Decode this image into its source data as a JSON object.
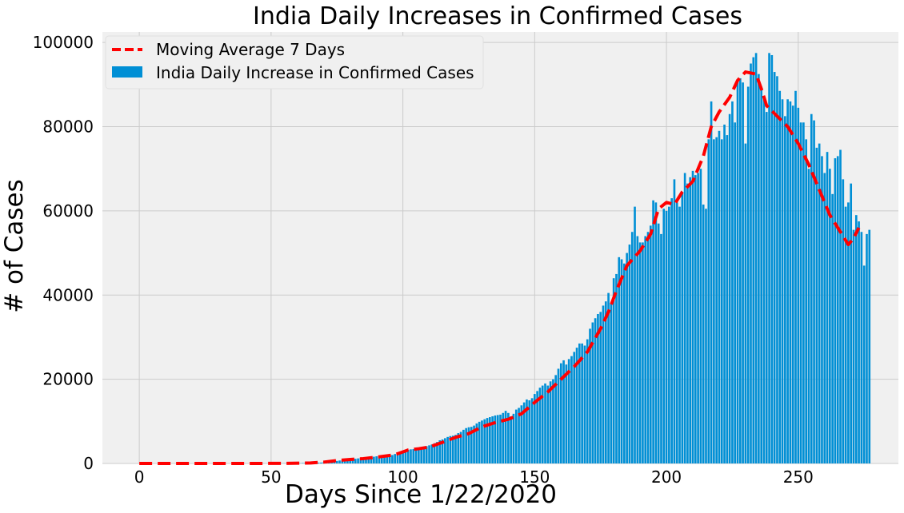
{
  "chart_data": {
    "type": "bar",
    "title": "India Daily Increases in Confirmed Cases",
    "xlabel": "Days Since 1/22/2020",
    "ylabel": "# of Cases",
    "xlim": [
      -14,
      288
    ],
    "ylim": [
      0,
      102500
    ],
    "xticks": [
      0,
      50,
      100,
      150,
      200,
      250
    ],
    "yticks": [
      0,
      20000,
      40000,
      60000,
      80000,
      100000
    ],
    "grid": true,
    "legend_position": "upper-left",
    "colors": {
      "bar": "#008fd5",
      "line": "#ff0000",
      "background": "#f0f0f0",
      "grid": "#cbcbcb",
      "legend_bg": "#f0f0f0",
      "legend_border": "#e0e0e0"
    },
    "legend": [
      {
        "label": "Moving Average 7 Days",
        "kind": "dashed-line"
      },
      {
        "label": "India Daily Increase in Confirmed Cases",
        "kind": "bar"
      }
    ],
    "series": [
      {
        "name": "India Daily Increase in Confirmed Cases",
        "kind": "bar",
        "x_start": 0,
        "values": [
          0,
          0,
          0,
          0,
          0,
          0,
          0,
          0,
          0,
          1,
          0,
          1,
          0,
          0,
          0,
          0,
          0,
          0,
          0,
          0,
          0,
          0,
          0,
          0,
          0,
          0,
          0,
          0,
          0,
          0,
          0,
          0,
          0,
          0,
          0,
          0,
          0,
          0,
          0,
          0,
          3,
          0,
          2,
          24,
          1,
          6,
          3,
          11,
          4,
          6,
          1,
          3,
          12,
          11,
          14,
          30,
          19,
          46,
          63,
          85,
          57,
          45,
          94,
          134,
          60,
          70,
          87,
          141,
          172,
          210,
          290,
          310,
          432,
          511,
          500,
          600,
          700,
          750,
          780,
          800,
          900,
          1000,
          1100,
          1200,
          1300,
          1350,
          1450,
          1500,
          1550,
          1600,
          1700,
          1650,
          1750,
          1800,
          1850,
          1900,
          2000,
          2250,
          2500,
          2850,
          3050,
          3200,
          3250,
          3350,
          3400,
          3500,
          3600,
          3700,
          3900,
          4100,
          4300,
          4500,
          4800,
          5100,
          5500,
          5700,
          6000,
          6300,
          6500,
          6600,
          6800,
          7200,
          7500,
          8000,
          8400,
          8600,
          8700,
          9000,
          9500,
          9900,
          10200,
          10500,
          10800,
          11000,
          11200,
          11400,
          11500,
          11600,
          12000,
          12500,
          12000,
          11200,
          11800,
          12800,
          13200,
          13800,
          14500,
          15200,
          15000,
          15500,
          16500,
          17200,
          18000,
          18500,
          19000,
          18500,
          19500,
          20000,
          21000,
          22500,
          23800,
          24500,
          23500,
          24800,
          25500,
          26500,
          27500,
          28500,
          28500,
          28000,
          29500,
          32000,
          33500,
          34500,
          35500,
          36000,
          37500,
          38500,
          40500,
          38000,
          44000,
          45000,
          49000,
          48500,
          47500,
          50000,
          52000,
          55000,
          61000,
          54000,
          52500,
          52500,
          54000,
          55000,
          56500,
          62500,
          62000,
          57000,
          54500,
          60500,
          60000,
          61000,
          63000,
          67500,
          62000,
          61000,
          64500,
          69000,
          66500,
          68000,
          69500,
          68500,
          69000,
          70000,
          61500,
          60500,
          77000,
          86000,
          77000,
          77500,
          79000,
          77000,
          80500,
          78000,
          83000,
          86000,
          81000,
          91000,
          91500,
          90500,
          76000,
          89500,
          95000,
          96500,
          97500,
          92500,
          89500,
          86500,
          83500,
          97500,
          97000,
          93000,
          92000,
          88500,
          86500,
          82500,
          86500,
          86000,
          85000,
          88500,
          84500,
          81000,
          81000,
          77000,
          70000,
          83000,
          81500,
          75000,
          76000,
          73000,
          69000,
          74000,
          70000,
          64000,
          72500,
          73000,
          74500,
          67500,
          61000,
          62000,
          66500,
          55500,
          59000,
          57500,
          55000,
          47000,
          54500,
          55500
        ]
      },
      {
        "name": "Moving Average 7 Days",
        "kind": "dashed-line",
        "points": [
          [
            0,
            0
          ],
          [
            40,
            0
          ],
          [
            55,
            20
          ],
          [
            65,
            120
          ],
          [
            70,
            320
          ],
          [
            75,
            700
          ],
          [
            80,
            950
          ],
          [
            85,
            1150
          ],
          [
            90,
            1500
          ],
          [
            95,
            1900
          ],
          [
            98,
            2300
          ],
          [
            102,
            3200
          ],
          [
            106,
            3500
          ],
          [
            110,
            3900
          ],
          [
            115,
            5000
          ],
          [
            120,
            6200
          ],
          [
            125,
            7100
          ],
          [
            130,
            8700
          ],
          [
            135,
            9700
          ],
          [
            140,
            10500
          ],
          [
            145,
            11800
          ],
          [
            150,
            14500
          ],
          [
            155,
            17000
          ],
          [
            160,
            20000
          ],
          [
            165,
            23000
          ],
          [
            170,
            26500
          ],
          [
            175,
            32000
          ],
          [
            178,
            36000
          ],
          [
            181,
            41000
          ],
          [
            185,
            47000
          ],
          [
            190,
            50500
          ],
          [
            194,
            54500
          ],
          [
            197,
            60500
          ],
          [
            200,
            62000
          ],
          [
            203,
            61500
          ],
          [
            206,
            64500
          ],
          [
            210,
            67000
          ],
          [
            214,
            73000
          ],
          [
            217,
            80000
          ],
          [
            220,
            83500
          ],
          [
            224,
            87000
          ],
          [
            227,
            91000
          ],
          [
            230,
            93000
          ],
          [
            234,
            92500
          ],
          [
            236,
            89000
          ],
          [
            238,
            85000
          ],
          [
            242,
            82500
          ],
          [
            246,
            80000
          ],
          [
            250,
            76000
          ],
          [
            254,
            71000
          ],
          [
            258,
            65000
          ],
          [
            262,
            59000
          ],
          [
            266,
            55000
          ],
          [
            269,
            52000
          ],
          [
            271,
            53500
          ],
          [
            273,
            56000
          ]
        ]
      }
    ]
  }
}
